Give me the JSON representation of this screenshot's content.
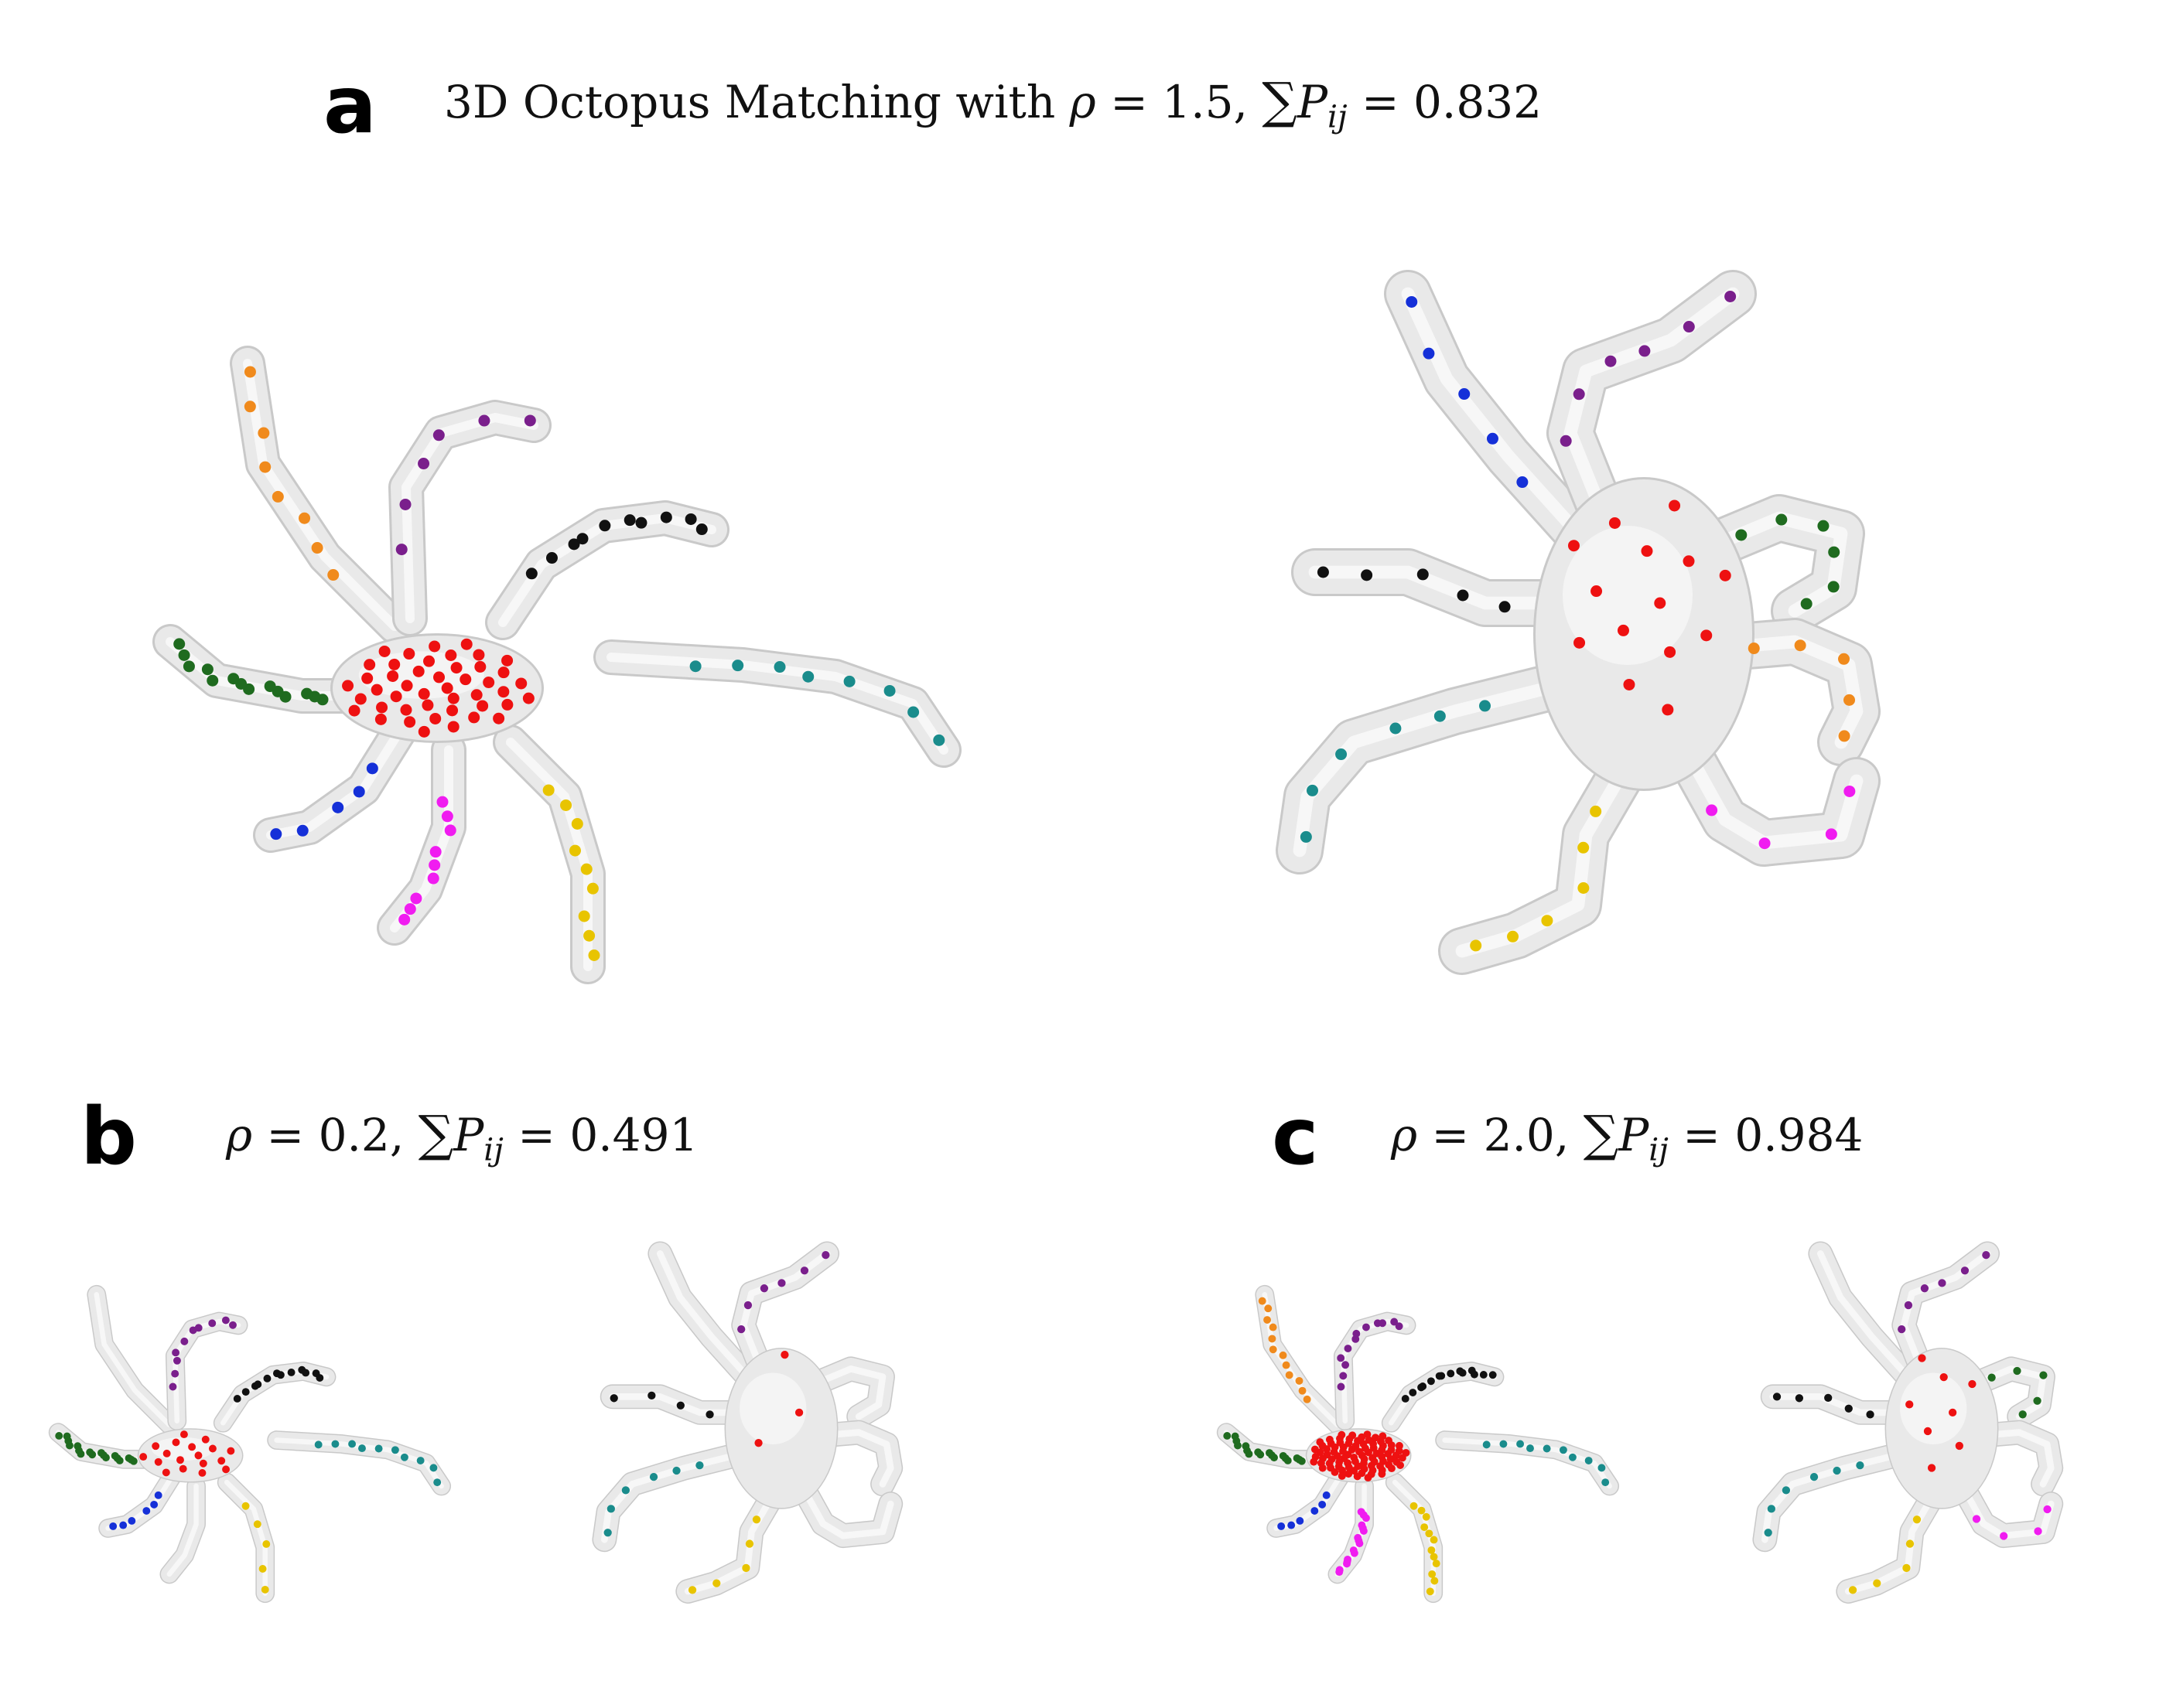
{
  "panel_a": {
    "label": "a",
    "title_text": "3D Octopus Matching with",
    "rho": "1.5",
    "sum": "0.832"
  },
  "panel_b": {
    "label": "b",
    "rho": "0.2",
    "sum": "0.491"
  },
  "panel_c": {
    "label": "c",
    "rho": "2.0",
    "sum": "0.984"
  },
  "symbols": {
    "rho": "ρ",
    "eq": "=",
    "sigma": "∑",
    "P": "P",
    "ij": "ij",
    "comma": ","
  },
  "colors": {
    "body": "#e9e9e9",
    "tube_edge": "#c9c9c9",
    "red": "#ee1111",
    "orange": "#f08a1c",
    "purple": "#7a1f8c",
    "black": "#111111",
    "teal": "#1a8c8c",
    "green": "#1f6b1f",
    "blue": "#1530d8",
    "magenta": "#f01cf0",
    "yellow": "#e8c400"
  }
}
